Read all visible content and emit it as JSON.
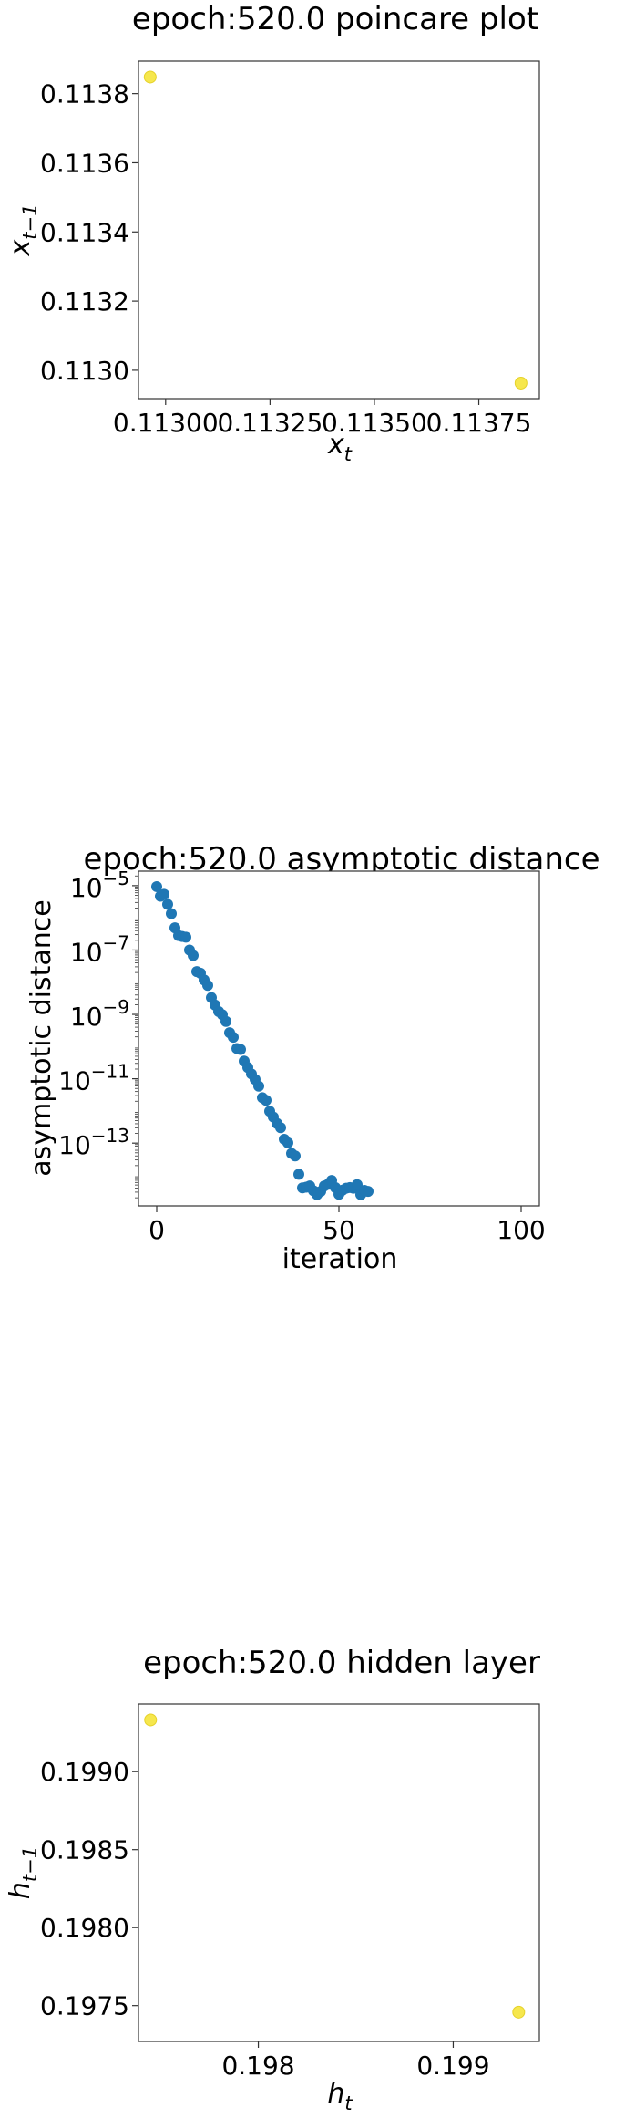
{
  "chart_data": [
    {
      "type": "scatter",
      "title": "epoch:520.0 poincare plot",
      "xlabel_base": "x",
      "xlabel_sub": "t",
      "ylabel_base": "x",
      "ylabel_sub": "t−1",
      "xlim": [
        0.112935,
        0.113895
      ],
      "ylim": [
        0.112918,
        0.113894
      ],
      "xticks": [
        0.113,
        0.11325,
        0.1135,
        0.11375
      ],
      "xtick_labels": [
        "0.11300",
        "0.11325",
        "0.11350",
        "0.11375"
      ],
      "yticks": [
        0.113,
        0.1132,
        0.1134,
        0.1136,
        0.1138
      ],
      "ytick_labels": [
        "0.1130",
        "0.1132",
        "0.1134",
        "0.1136",
        "0.1138"
      ],
      "point_color": "#f5e43a",
      "points": [
        {
          "x": 0.112963,
          "y": 0.113848
        },
        {
          "x": 0.113851,
          "y": 0.112963
        }
      ]
    },
    {
      "type": "scatter",
      "title": "epoch:520.0 asymptotic distance",
      "xlabel": "iteration",
      "ylabel": "asymptotic distance",
      "yscale": "log",
      "xlim": [
        -5,
        105
      ],
      "ylim_log10": [
        -14.95,
        -4.55
      ],
      "xticks": [
        0,
        50,
        100
      ],
      "xtick_labels": [
        "0",
        "50",
        "100"
      ],
      "yticks_log10": [
        -5,
        -7,
        -9,
        -11,
        -13
      ],
      "ytick_base": "10",
      "ytick_exponents": [
        "−5",
        "−7",
        "−9",
        "−11",
        "−13"
      ],
      "point_color": "#1f77b4",
      "x": [
        0,
        1,
        2,
        3,
        4,
        5,
        6,
        7,
        8,
        9,
        10,
        11,
        12,
        13,
        14,
        15,
        16,
        17,
        18,
        19,
        20,
        21,
        22,
        23,
        24,
        25,
        26,
        27,
        28,
        29,
        30,
        31,
        32,
        33,
        34,
        35,
        36,
        37,
        38,
        39,
        40,
        41,
        42,
        43,
        44,
        45,
        46,
        47,
        48,
        49,
        50,
        51,
        52,
        53,
        54,
        55,
        56,
        57,
        58
      ],
      "log10_y": [
        -5.03,
        -5.33,
        -5.27,
        -5.58,
        -5.87,
        -6.31,
        -6.55,
        -6.58,
        -6.6,
        -7.0,
        -7.17,
        -7.67,
        -7.72,
        -7.93,
        -8.1,
        -8.48,
        -8.71,
        -8.91,
        -9.01,
        -9.22,
        -9.57,
        -9.71,
        -10.06,
        -10.09,
        -10.45,
        -10.65,
        -10.85,
        -11.02,
        -11.23,
        -11.59,
        -11.67,
        -12.01,
        -12.19,
        -12.39,
        -12.52,
        -12.88,
        -12.99,
        -13.32,
        -13.4,
        -13.97,
        -14.39,
        -14.37,
        -14.33,
        -14.48,
        -14.6,
        -14.5,
        -14.33,
        -14.28,
        -14.16,
        -14.38,
        -14.59,
        -14.46,
        -14.4,
        -14.38,
        -14.4,
        -14.29,
        -14.6,
        -14.47,
        -14.5
      ]
    },
    {
      "type": "scatter",
      "title": "epoch:520.0 hidden layer",
      "xlabel_base": "h",
      "xlabel_sub": "t",
      "ylabel_base": "h",
      "ylabel_sub": "t−1",
      "xlim": [
        0.197385,
        0.199442
      ],
      "ylim": [
        0.19727,
        0.199434
      ],
      "xticks": [
        0.198,
        0.199
      ],
      "xtick_labels": [
        "0.198",
        "0.199"
      ],
      "yticks": [
        0.1975,
        0.198,
        0.1985,
        0.199
      ],
      "ytick_labels": [
        "0.1975",
        "0.1980",
        "0.1985",
        "0.1990"
      ],
      "point_color": "#f5e43a",
      "points": [
        {
          "x": 0.197447,
          "y": 0.199332
        },
        {
          "x": 0.199336,
          "y": 0.197458
        }
      ]
    }
  ]
}
